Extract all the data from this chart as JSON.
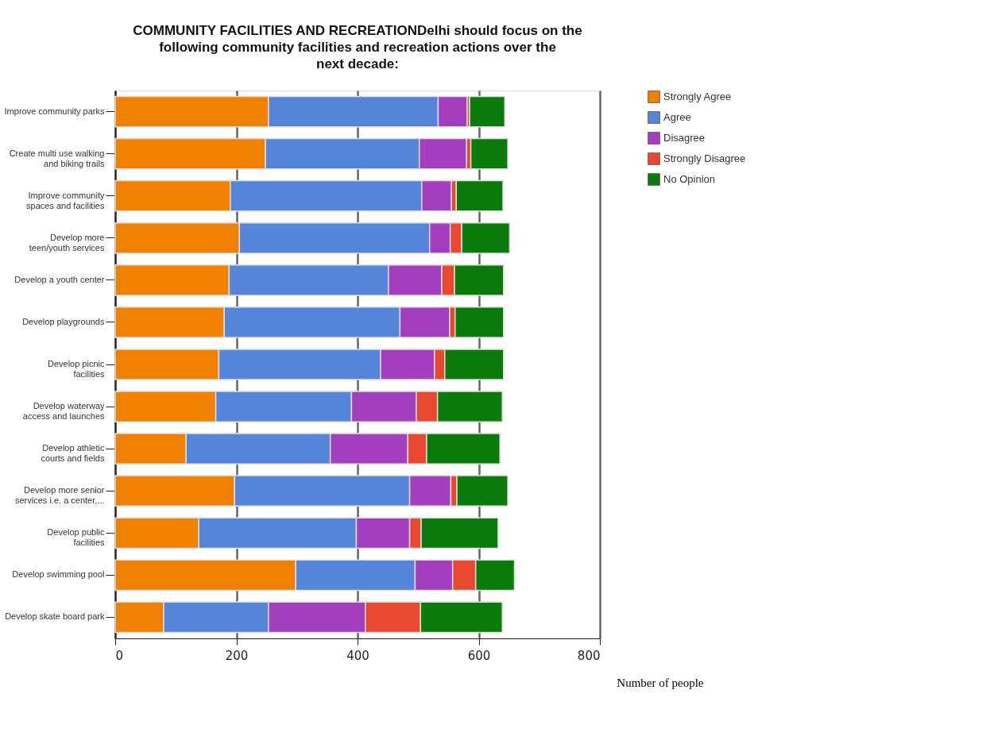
{
  "chart_data": {
    "type": "bar",
    "orientation": "horizontal",
    "stacked": true,
    "title": "COMMUNITY FACILITIES AND RECREATIONDelhi should focus on the following community facilities and recreation actions over the next decade:",
    "xlabel": "Number of people",
    "categories": [
      "Improve community parks",
      "Create multi use walking\nand biking trails",
      "Improve community\nspaces and facilities",
      "Develop more\nteen/youth services",
      "Develop a youth center",
      "Develop playgrounds",
      "Develop picnic\nfacilities",
      "Develop waterway\naccess and launches",
      "Develop athletic\ncourts and fields",
      "Develop more senior\nservices i.e. a center,...",
      "Develop public\nfacilities",
      "Develop swimming pool",
      "Develop skate board park"
    ],
    "series": [
      {
        "name": "Strongly Agree",
        "color": "#f08000",
        "values": [
          253,
          248,
          190,
          205,
          188,
          180,
          171,
          166,
          117,
          197,
          138,
          298,
          80
        ]
      },
      {
        "name": "Agree",
        "color": "#5585db",
        "values": [
          280,
          254,
          316,
          314,
          263,
          290,
          267,
          224,
          238,
          289,
          260,
          197,
          173
        ]
      },
      {
        "name": "Disagree",
        "color": "#a33fbe",
        "values": [
          48,
          78,
          49,
          34,
          88,
          82,
          89,
          107,
          128,
          68,
          88,
          62,
          160
        ]
      },
      {
        "name": "Strongly Disagree",
        "color": "#e8482f",
        "values": [
          4,
          7,
          8,
          19,
          21,
          9,
          17,
          35,
          31,
          10,
          19,
          38,
          91
        ]
      },
      {
        "name": "No Opinion",
        "color": "#0a7a0a",
        "values": [
          58,
          61,
          77,
          79,
          81,
          80,
          97,
          107,
          121,
          84,
          127,
          64,
          135
        ]
      }
    ],
    "xlim": [
      0,
      800
    ],
    "xticks": [
      0,
      200,
      400,
      600,
      800
    ],
    "grid": "x",
    "legend": "right"
  }
}
